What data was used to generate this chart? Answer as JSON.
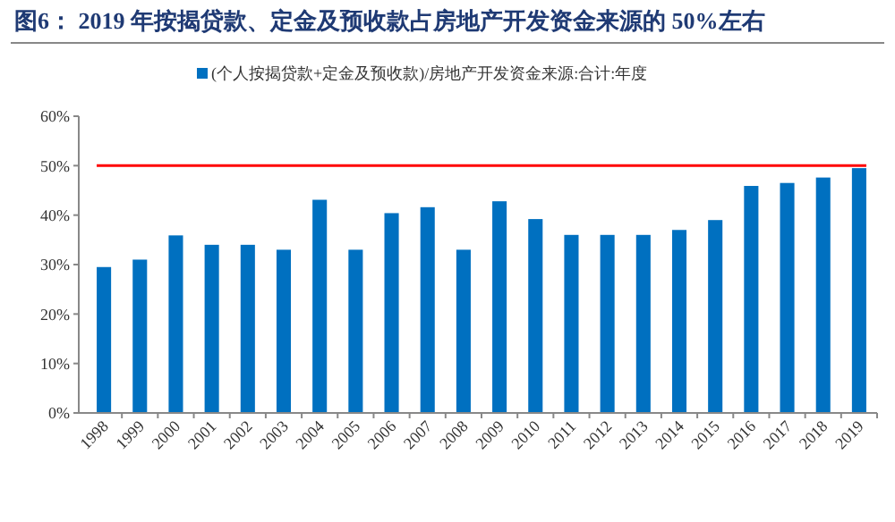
{
  "chart_data": {
    "type": "bar",
    "title": "图6：  2019 年按揭贷款、定金及预收款占房地产开发资金来源的 50%左右",
    "categories": [
      "1998",
      "1999",
      "2000",
      "2001",
      "2002",
      "2003",
      "2004",
      "2005",
      "2006",
      "2007",
      "2008",
      "2009",
      "2010",
      "2011",
      "2012",
      "2013",
      "2014",
      "2015",
      "2016",
      "2017",
      "2018",
      "2019"
    ],
    "series": [
      {
        "name": "(个人按揭贷款+定金及预收款)/房地产开发资金来源:合计:年度",
        "color": "#0070c0",
        "values": [
          29.5,
          31,
          35.9,
          34,
          34,
          33,
          43.1,
          33,
          40.4,
          41.6,
          33,
          42.8,
          39.2,
          36,
          36,
          36,
          37,
          39,
          45.9,
          46.5,
          47.6,
          49.5
        ]
      }
    ],
    "ylim": [
      0,
      60
    ],
    "yticks": [
      {
        "value": 0,
        "label": "0%"
      },
      {
        "value": 10,
        "label": "10%"
      },
      {
        "value": 20,
        "label": "20%"
      },
      {
        "value": 30,
        "label": "30%"
      },
      {
        "value": 40,
        "label": "40%"
      },
      {
        "value": 50,
        "label": "50%"
      },
      {
        "value": 60,
        "label": "60%"
      }
    ],
    "ref_lines": [
      {
        "axis": "y",
        "value": 50,
        "color": "#ff0000"
      }
    ],
    "legend": "top",
    "grid": false
  }
}
